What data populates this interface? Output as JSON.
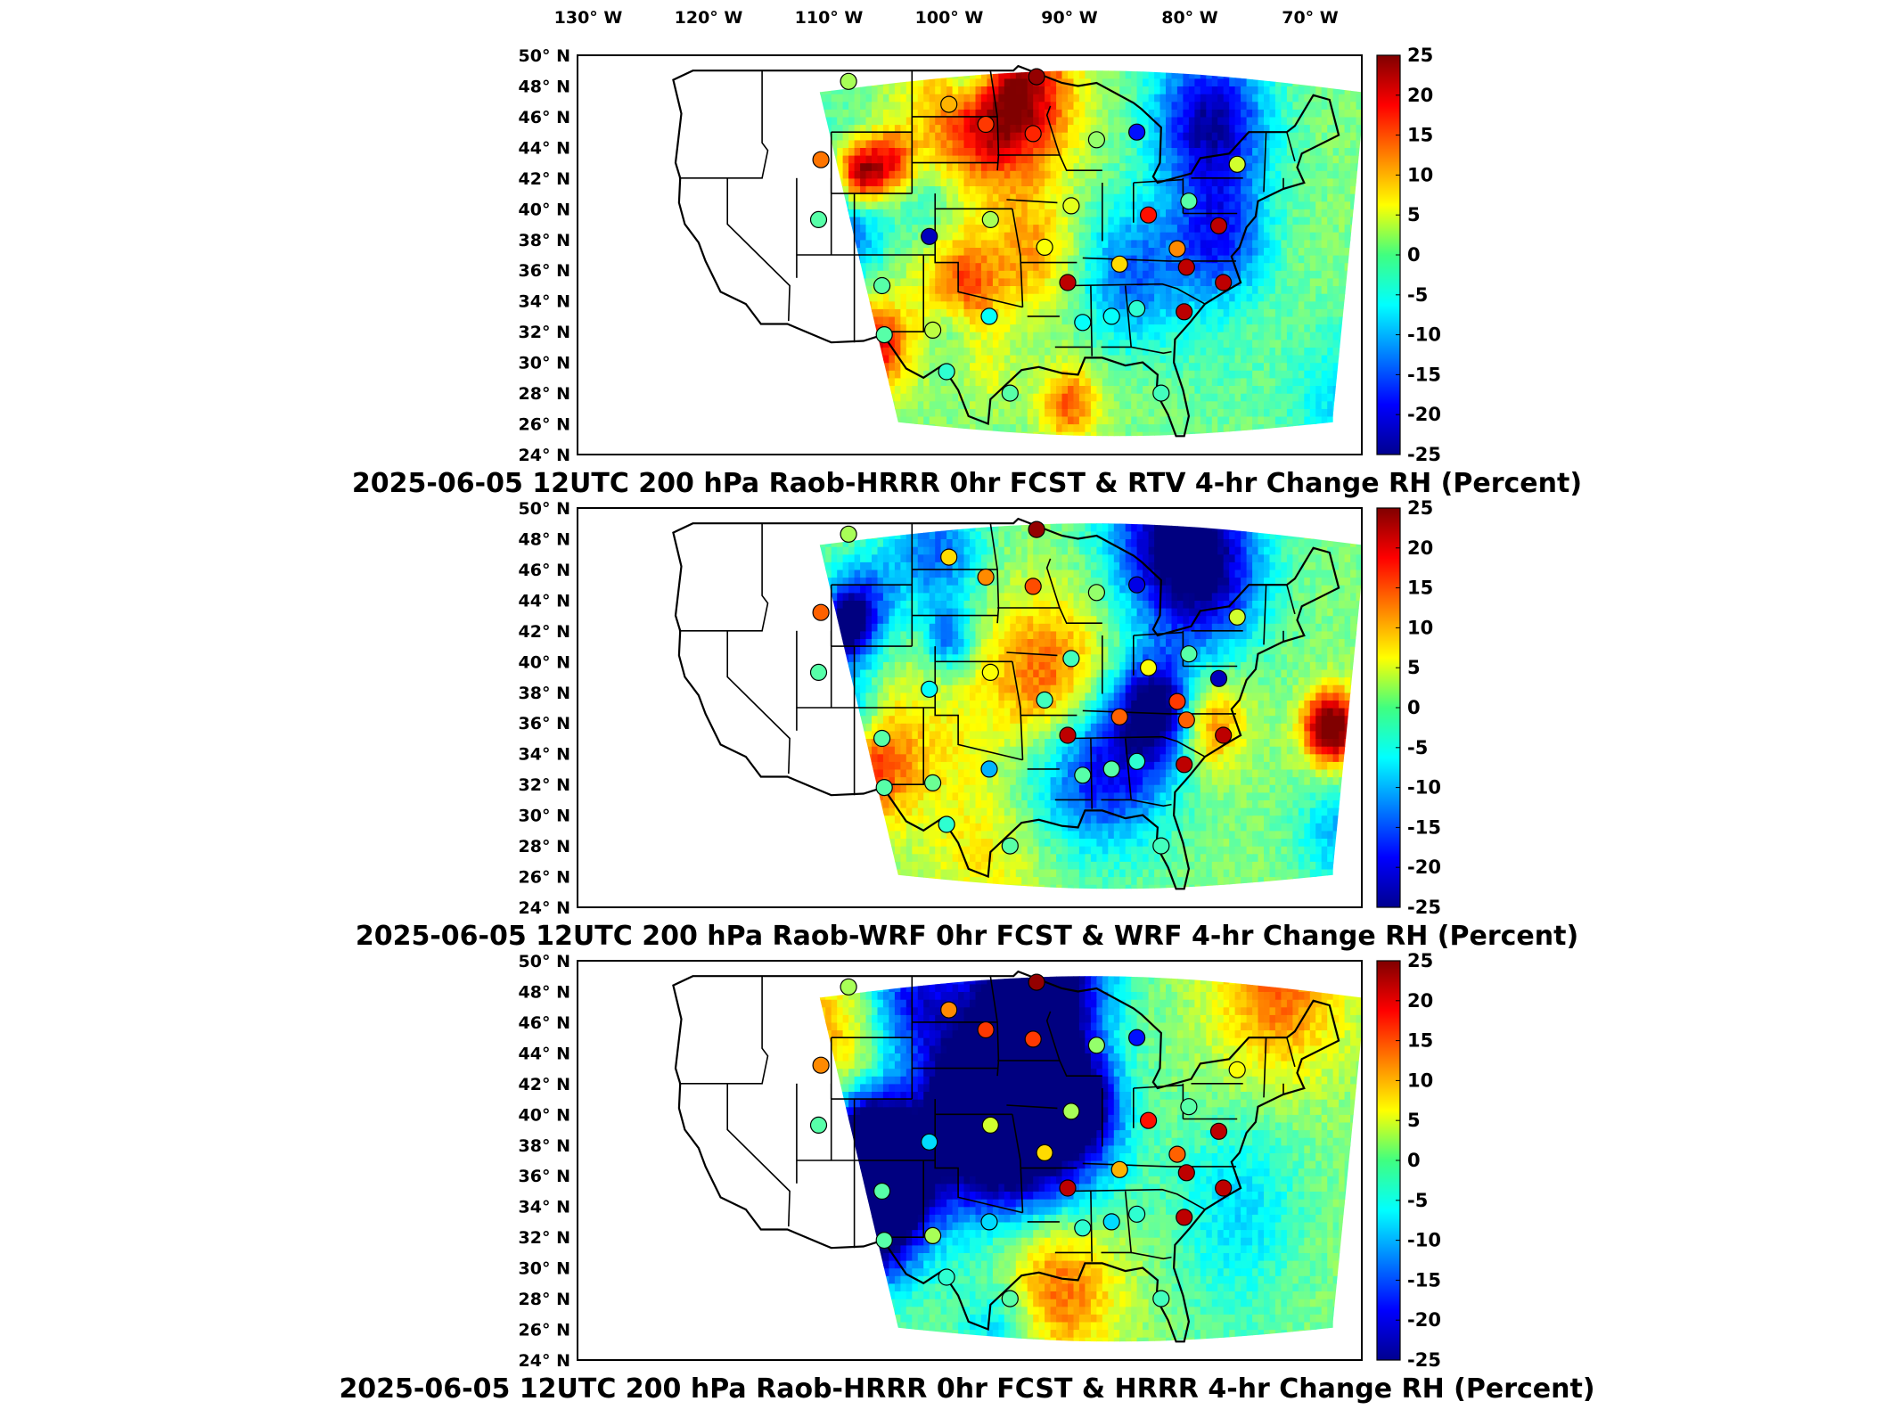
{
  "longitude_labels": [
    "130° W",
    "120° W",
    "110° W",
    "100° W",
    "90° W",
    "80° W",
    "70° W"
  ],
  "latitude_labels": [
    "50° N",
    "48° N",
    "46° N",
    "44° N",
    "42° N",
    "40° N",
    "38° N",
    "36° N",
    "34° N",
    "32° N",
    "30° N",
    "28° N",
    "26° N",
    "24° N"
  ],
  "colorbar": {
    "ticks": [
      "25",
      "20",
      "15",
      "10",
      "5",
      "0",
      "-5",
      "-10",
      "-15",
      "-20",
      "-25"
    ],
    "colormap": "jet",
    "min": -25,
    "max": 25
  },
  "panels": [
    {
      "title": "2025-06-05 12UTC 200 hPa Raob-HRRR 0hr FCST & RTV 4-hr Change RH (Percent)",
      "seed": 11
    },
    {
      "title": "2025-06-05 12UTC 200 hPa Raob-WRF 0hr FCST & WRF 4-hr Change RH (Percent)",
      "seed": 23
    },
    {
      "title": "2025-06-05 12UTC 200 hPa Raob-HRRR 0hr FCST & HRRR 4-hr Change RH (Percent)",
      "seed": 37
    }
  ],
  "map_extent": {
    "lon_min": -133,
    "lon_max": -65,
    "lat_min": 24,
    "lat_max": 50
  },
  "stations": [
    {
      "lon": -109.5,
      "lat": 48.3,
      "v": [
        2,
        2,
        2
      ]
    },
    {
      "lon": -100.8,
      "lat": 46.8,
      "v": [
        10,
        8,
        12
      ]
    },
    {
      "lon": -97.6,
      "lat": 45.5,
      "v": [
        16,
        12,
        16
      ]
    },
    {
      "lon": -93.2,
      "lat": 48.6,
      "v": [
        24,
        24,
        24
      ]
    },
    {
      "lon": -93.5,
      "lat": 44.9,
      "v": [
        17,
        15,
        16
      ]
    },
    {
      "lon": -111.9,
      "lat": 43.2,
      "v": [
        13,
        14,
        12
      ]
    },
    {
      "lon": -88.0,
      "lat": 44.5,
      "v": [
        1,
        1,
        1
      ]
    },
    {
      "lon": -84.5,
      "lat": 45.0,
      "v": [
        -18,
        -20,
        -18
      ]
    },
    {
      "lon": -75.8,
      "lat": 42.9,
      "v": [
        4,
        4,
        6
      ]
    },
    {
      "lon": -90.2,
      "lat": 40.2,
      "v": [
        5,
        -3,
        2
      ]
    },
    {
      "lon": -83.5,
      "lat": 39.6,
      "v": [
        18,
        6,
        18
      ]
    },
    {
      "lon": -80.0,
      "lat": 40.5,
      "v": [
        -2,
        -2,
        -2
      ]
    },
    {
      "lon": -77.4,
      "lat": 38.9,
      "v": [
        22,
        -22,
        22
      ]
    },
    {
      "lon": -92.5,
      "lat": 37.5,
      "v": [
        6,
        -3,
        8
      ]
    },
    {
      "lon": -97.2,
      "lat": 39.3,
      "v": [
        2,
        6,
        4
      ]
    },
    {
      "lon": -102.5,
      "lat": 38.2,
      "v": [
        -22,
        -6,
        -8
      ]
    },
    {
      "lon": -112.1,
      "lat": 39.3,
      "v": [
        -2,
        -2,
        -2
      ]
    },
    {
      "lon": -90.5,
      "lat": 35.2,
      "v": [
        22,
        22,
        22
      ]
    },
    {
      "lon": -86.0,
      "lat": 36.4,
      "v": [
        8,
        14,
        10
      ]
    },
    {
      "lon": -81.0,
      "lat": 37.4,
      "v": [
        12,
        16,
        14
      ]
    },
    {
      "lon": -80.2,
      "lat": 36.2,
      "v": [
        22,
        14,
        22
      ]
    },
    {
      "lon": -77.0,
      "lat": 35.2,
      "v": [
        22,
        22,
        22
      ]
    },
    {
      "lon": -80.4,
      "lat": 33.3,
      "v": [
        22,
        22,
        22
      ]
    },
    {
      "lon": -84.5,
      "lat": 33.5,
      "v": [
        -4,
        -4,
        -4
      ]
    },
    {
      "lon": -86.7,
      "lat": 33.0,
      "v": [
        -6,
        -2,
        -8
      ]
    },
    {
      "lon": -89.2,
      "lat": 32.6,
      "v": [
        -6,
        -2,
        -4
      ]
    },
    {
      "lon": -97.3,
      "lat": 33.0,
      "v": [
        -6,
        -10,
        -8
      ]
    },
    {
      "lon": -106.6,
      "lat": 35.0,
      "v": [
        -2,
        -2,
        -2
      ]
    },
    {
      "lon": -102.2,
      "lat": 32.1,
      "v": [
        3,
        -1,
        2
      ]
    },
    {
      "lon": -106.4,
      "lat": 31.8,
      "v": [
        -2,
        -2,
        -2
      ]
    },
    {
      "lon": -101.0,
      "lat": 29.4,
      "v": [
        -4,
        -4,
        -4
      ]
    },
    {
      "lon": -95.5,
      "lat": 28.0,
      "v": [
        -2,
        -2,
        -2
      ]
    },
    {
      "lon": -82.4,
      "lat": 28.0,
      "v": [
        -3,
        -3,
        -3
      ]
    }
  ]
}
